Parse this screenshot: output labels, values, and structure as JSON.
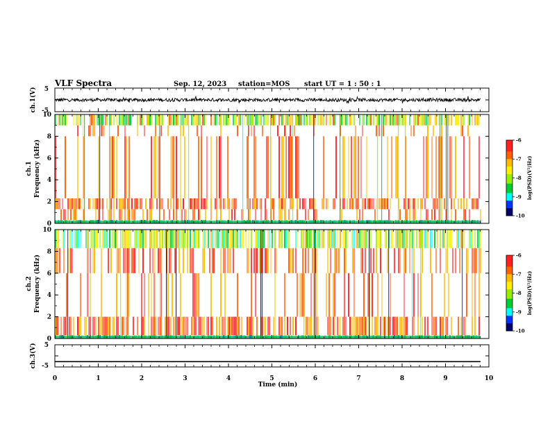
{
  "header": {
    "title": "VLF Spectra",
    "date": "Sep. 12, 2023",
    "station": "station=MOS",
    "start": "start  UT  =   1 : 50 : 1"
  },
  "chart_data": [
    {
      "type": "line",
      "id": "ch1-waveform",
      "ylabel": "ch.1(V)",
      "ylim": [
        -5,
        5
      ],
      "y_ticklabels": [
        "5",
        "-5"
      ],
      "x_range_min": [
        0,
        10
      ],
      "description_level": 0
    },
    {
      "type": "heatmap",
      "id": "ch1-spectrogram",
      "ylabel_line1": "ch.1",
      "ylabel_line2": "Frequency (kHz)",
      "ylim": [
        0,
        10
      ],
      "y_ticklabels": [
        "0",
        "2",
        "4",
        "6",
        "8",
        "10"
      ],
      "colorbar": {
        "label": "log(PSD)(V²/Hz)",
        "range": [
          -10,
          -6
        ],
        "ticklabels": [
          "-6",
          "-7",
          "-8",
          "-9",
          "-10"
        ]
      }
    },
    {
      "type": "heatmap",
      "id": "ch2-spectrogram",
      "ylabel_line1": "ch.2",
      "ylabel_line2": "Frequency (kHz)",
      "ylim": [
        0,
        10
      ],
      "y_ticklabels": [
        "0",
        "2",
        "4",
        "6",
        "8",
        "10"
      ],
      "colorbar": {
        "label": "log(PSD)(V²/Hz)",
        "range": [
          -10,
          -6
        ],
        "ticklabels": [
          "-6",
          "-7",
          "-8",
          "-9",
          "-10"
        ]
      }
    },
    {
      "type": "line",
      "id": "ch3-waveform",
      "ylabel": "ch.3(V)",
      "ylim": [
        -5,
        5
      ],
      "y_ticklabels": [
        "5",
        "-5"
      ],
      "level": -2.6
    }
  ],
  "x_axis": {
    "label": "Time  (min)",
    "range": [
      0,
      10
    ],
    "ticklabels": [
      "0",
      "1",
      "2",
      "3",
      "4",
      "5",
      "6",
      "7",
      "8",
      "9",
      "10"
    ]
  },
  "colors": {
    "ink": "#000000",
    "red": "#ff2020",
    "yellow": "#ffee00",
    "green": "#00cc33",
    "cyan": "#00ffff",
    "blue": "#0033ff",
    "navy": "#000066"
  }
}
